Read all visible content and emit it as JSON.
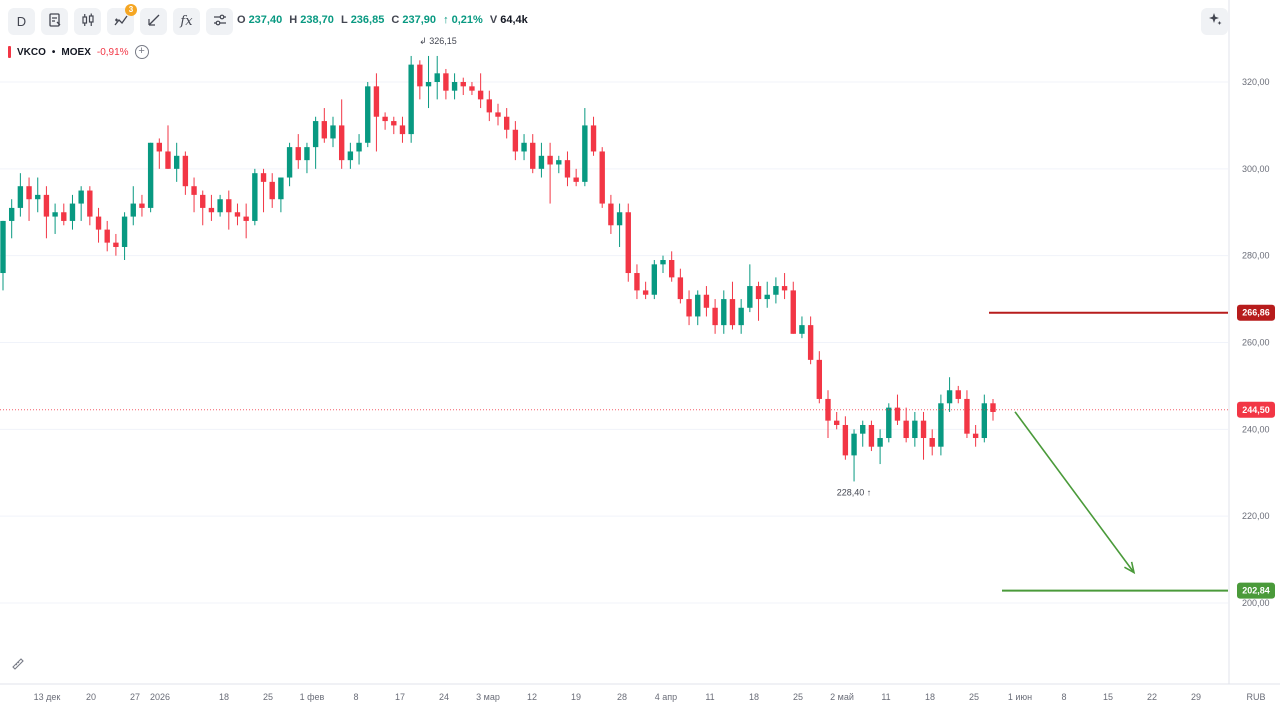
{
  "toolbar": {
    "interval": "D",
    "indicator_badge": "3",
    "fx_label": "fx",
    "buttons": [
      "timeframe",
      "chart-type",
      "candles",
      "indicators",
      "drawings",
      "functions",
      "settings"
    ]
  },
  "ohlc": {
    "o_label": "O",
    "o": "237,40",
    "h_label": "H",
    "h": "238,70",
    "l_label": "L",
    "l": "236,85",
    "c_label": "C",
    "c": "237,90",
    "change": "↑ 0,21%",
    "v_label": "V",
    "v": "64,4k"
  },
  "symbol": {
    "ticker": "VKCO",
    "separator": "•",
    "exchange": "MOEX",
    "change": "-0,91%",
    "add": "+"
  },
  "chart_data": {
    "type": "candlestick",
    "up_color": "#089981",
    "down_color": "#f23645",
    "ylim": [
      180,
      340
    ],
    "y_ticks": [
      "200,00",
      "220,00",
      "240,00",
      "260,00",
      "280,00",
      "300,00",
      "320,00"
    ],
    "y_tick_values": [
      200,
      220,
      240,
      260,
      280,
      300,
      320
    ],
    "x_ticks": [
      "13 дек",
      "20",
      "27",
      "2026",
      "18",
      "25",
      "1 фев",
      "8",
      "17",
      "24",
      "3 мар",
      "12",
      "19",
      "28",
      "4 апр",
      "11",
      "18",
      "25",
      "2 май",
      "11",
      "18",
      "25",
      "1 июн",
      "8",
      "15",
      "22",
      "29"
    ],
    "currency": "RUB",
    "high_annotation": "326,15",
    "low_annotation": "228,40",
    "current_price": "244,50",
    "current_price_value": 244.5,
    "resistance_label": "266,86",
    "resistance_value": 266.86,
    "resistance_color": "#b71c1c",
    "target_label": "202,84",
    "target_value": 202.84,
    "target_color": "#4a9a3a",
    "forecast_arrow": {
      "from": 244.5,
      "to": 207
    },
    "candles": [
      [
        276,
        288,
        272,
        288
      ],
      [
        288,
        293,
        284,
        291
      ],
      [
        291,
        299,
        289,
        296
      ],
      [
        296,
        298,
        288,
        293
      ],
      [
        293,
        298,
        290,
        294
      ],
      [
        294,
        296,
        284,
        289
      ],
      [
        289,
        292,
        285,
        290
      ],
      [
        290,
        292,
        287,
        288
      ],
      [
        288,
        294,
        286,
        292
      ],
      [
        292,
        296,
        288,
        295
      ],
      [
        295,
        296,
        287,
        289
      ],
      [
        289,
        291,
        283,
        286
      ],
      [
        286,
        288,
        281,
        283
      ],
      [
        283,
        285,
        280,
        282
      ],
      [
        282,
        290,
        279,
        289
      ],
      [
        289,
        296,
        287,
        292
      ],
      [
        292,
        294,
        289,
        291
      ],
      [
        291,
        306,
        290,
        306
      ],
      [
        306,
        307,
        300,
        304
      ],
      [
        304,
        310,
        300,
        300
      ],
      [
        300,
        306,
        297,
        303
      ],
      [
        303,
        304,
        294,
        296
      ],
      [
        296,
        298,
        290,
        294
      ],
      [
        294,
        295,
        287,
        291
      ],
      [
        291,
        294,
        288,
        290
      ],
      [
        290,
        294,
        289,
        293
      ],
      [
        293,
        295,
        286,
        290
      ],
      [
        290,
        292,
        287,
        289
      ],
      [
        289,
        292,
        284,
        288
      ],
      [
        288,
        300,
        287,
        299
      ],
      [
        299,
        300,
        290,
        297
      ],
      [
        297,
        299,
        291,
        293
      ],
      [
        293,
        298,
        290,
        298
      ],
      [
        298,
        306,
        296,
        305
      ],
      [
        305,
        308,
        300,
        302
      ],
      [
        302,
        306,
        299,
        305
      ],
      [
        305,
        312,
        300,
        311
      ],
      [
        311,
        314,
        306,
        307
      ],
      [
        307,
        312,
        305,
        310
      ],
      [
        310,
        316,
        300,
        302
      ],
      [
        302,
        306,
        300,
        304
      ],
      [
        304,
        308,
        301,
        306
      ],
      [
        306,
        320,
        305,
        319
      ],
      [
        319,
        322,
        304,
        312
      ],
      [
        312,
        313,
        309,
        311
      ],
      [
        311,
        312,
        308,
        310
      ],
      [
        310,
        312,
        306,
        308
      ],
      [
        308,
        326,
        306,
        324
      ],
      [
        324,
        325,
        316,
        319
      ],
      [
        319,
        326,
        314,
        320
      ],
      [
        320,
        326,
        316,
        322
      ],
      [
        322,
        323,
        316,
        318
      ],
      [
        318,
        322,
        316,
        320
      ],
      [
        320,
        321,
        317,
        319
      ],
      [
        319,
        320,
        317,
        318
      ],
      [
        318,
        322,
        314,
        316
      ],
      [
        316,
        318,
        311,
        313
      ],
      [
        313,
        315,
        310,
        312
      ],
      [
        312,
        314,
        307,
        309
      ],
      [
        309,
        311,
        302,
        304
      ],
      [
        304,
        308,
        302,
        306
      ],
      [
        306,
        308,
        299,
        300
      ],
      [
        300,
        306,
        298,
        303
      ],
      [
        303,
        306,
        292,
        301
      ],
      [
        301,
        303,
        299,
        302
      ],
      [
        302,
        304,
        296,
        298
      ],
      [
        298,
        300,
        296,
        297
      ],
      [
        297,
        314,
        296,
        310
      ],
      [
        310,
        312,
        303,
        304
      ],
      [
        304,
        305,
        291,
        292
      ],
      [
        292,
        294,
        285,
        287
      ],
      [
        287,
        292,
        282,
        290
      ],
      [
        290,
        292,
        274,
        276
      ],
      [
        276,
        278,
        270,
        272
      ],
      [
        272,
        274,
        270,
        271
      ],
      [
        271,
        279,
        270,
        278
      ],
      [
        278,
        280,
        276,
        279
      ],
      [
        279,
        281,
        274,
        275
      ],
      [
        275,
        277,
        269,
        270
      ],
      [
        270,
        272,
        264,
        266
      ],
      [
        266,
        272,
        264,
        271
      ],
      [
        271,
        273,
        266,
        268
      ],
      [
        268,
        270,
        262,
        264
      ],
      [
        264,
        272,
        262,
        270
      ],
      [
        270,
        274,
        263,
        264
      ],
      [
        264,
        270,
        262,
        268
      ],
      [
        268,
        278,
        267,
        273
      ],
      [
        273,
        274,
        265,
        270
      ],
      [
        270,
        274,
        268,
        271
      ],
      [
        271,
        275,
        269,
        273
      ],
      [
        273,
        276,
        270,
        272
      ],
      [
        272,
        274,
        262,
        262
      ],
      [
        262,
        266,
        261,
        264
      ],
      [
        264,
        266,
        255,
        256
      ],
      [
        256,
        258,
        246,
        247
      ],
      [
        247,
        249,
        238,
        242
      ],
      [
        242,
        244,
        240,
        241
      ],
      [
        241,
        243,
        233,
        234
      ],
      [
        234,
        240,
        228,
        239
      ],
      [
        239,
        242,
        236,
        241
      ],
      [
        241,
        242,
        235,
        236
      ],
      [
        236,
        240,
        232,
        238
      ],
      [
        238,
        246,
        237,
        245
      ],
      [
        245,
        248,
        241,
        242
      ],
      [
        242,
        245,
        237,
        238
      ],
      [
        238,
        244,
        236,
        242
      ],
      [
        242,
        244,
        233,
        238
      ],
      [
        238,
        240,
        234,
        236
      ],
      [
        236,
        248,
        234,
        246
      ],
      [
        246,
        252,
        244,
        249
      ],
      [
        249,
        250,
        246,
        247
      ],
      [
        247,
        249,
        238,
        239
      ],
      [
        239,
        241,
        236,
        238
      ],
      [
        238,
        248,
        237,
        246
      ],
      [
        246,
        247,
        242,
        244
      ]
    ]
  }
}
